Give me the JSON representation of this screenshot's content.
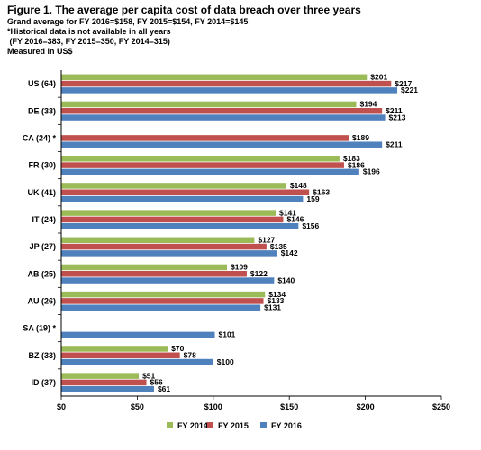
{
  "header": {
    "title": "Figure 1. The average per capita cost of data breach over three years",
    "line1": "Grand average for FY 2016=$158, FY 2015=$154, FY 2014=$145",
    "line2": "*Historical data is not available in all years",
    "line3": " (FY 2016=383, FY 2015=350, FY 2014=315)",
    "line4": "Measured in US$"
  },
  "chart_data": {
    "type": "bar",
    "orientation": "horizontal",
    "title": "Figure 1. The average per capita cost of data breach over three years",
    "categories": [
      "US (64)",
      "DE (33)",
      "CA (24) *",
      "FR (30)",
      "UK (41)",
      "IT (24)",
      "JP (27)",
      "AB (25)",
      "AU (26)",
      "SA (19) *",
      "BZ (33)",
      "ID (37)"
    ],
    "series": [
      {
        "name": "FY 2014",
        "color": "#9bbb59",
        "values": [
          201,
          194,
          null,
          183,
          148,
          141,
          127,
          109,
          134,
          null,
          70,
          51
        ],
        "labels": [
          "$201",
          "$194",
          "",
          "$183",
          "$148",
          "$141",
          "$127",
          "$109",
          "$134",
          "",
          "$70",
          "$51"
        ]
      },
      {
        "name": "FY 2015",
        "color": "#c0504d",
        "values": [
          217,
          211,
          189,
          186,
          163,
          146,
          135,
          122,
          133,
          null,
          78,
          56
        ],
        "labels": [
          "$217",
          "$211",
          "$189",
          "$186",
          "$163",
          "$146",
          "$135",
          "$122",
          "$133",
          "",
          "$78",
          "$56"
        ]
      },
      {
        "name": "FY 2016",
        "color": "#4f81bd",
        "values": [
          221,
          213,
          211,
          196,
          159,
          156,
          142,
          140,
          131,
          101,
          100,
          61
        ],
        "labels": [
          "$221",
          "$213",
          "$211",
          "$196",
          "159",
          "$156",
          "$142",
          "$140",
          "$131",
          "$101",
          "$100",
          "$61"
        ]
      }
    ],
    "xlim": [
      0,
      250
    ],
    "xticks": [
      0,
      50,
      100,
      150,
      200,
      250
    ],
    "xtick_labels": [
      "$0",
      "$50",
      "$100",
      "$150",
      "$200",
      "$250"
    ],
    "legend_position": "bottom",
    "grid": false
  }
}
